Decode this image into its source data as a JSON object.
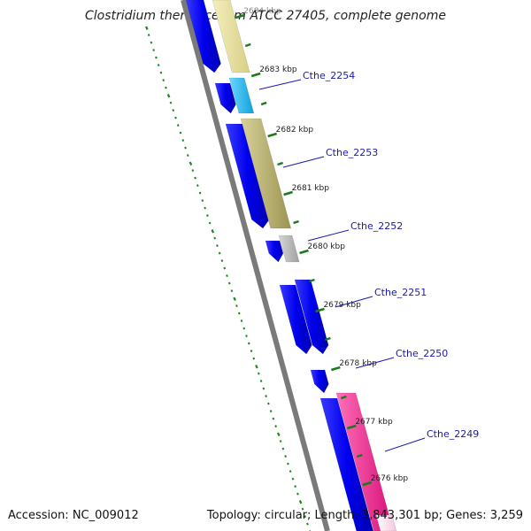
{
  "title": "Clostridium thermocellum ATCC 27405, complete genome",
  "footer": {
    "accession": "Accession: NC_009012",
    "summary": "Topology: circular; Length: 3,843,301 bp; Genes: 3,259"
  },
  "colors": {
    "backbone": "#7a7a7a",
    "forward_strand": "#0000e6",
    "tick": "#1a7a1a",
    "gc_dots": "#1a8a1a",
    "label_line": "#1a1ab0",
    "gene_2254": "#19b5e8",
    "gene_2253": "#b5ae6a",
    "gene_2252": "#b8b8b8",
    "gene_2249": "#ee2d8c",
    "gene_top": "#e8e0a0"
  },
  "ticks": [
    "2684 kbp",
    "2683 kbp",
    "2682 kbp",
    "2681 kbp",
    "2680 kbp",
    "2679 kbp",
    "2678 kbp",
    "2677 kbp",
    "2676 kbp"
  ],
  "genes": [
    "Cthe_2254",
    "Cthe_2253",
    "Cthe_2252",
    "Cthe_2251",
    "Cthe_2250",
    "Cthe_2249"
  ]
}
